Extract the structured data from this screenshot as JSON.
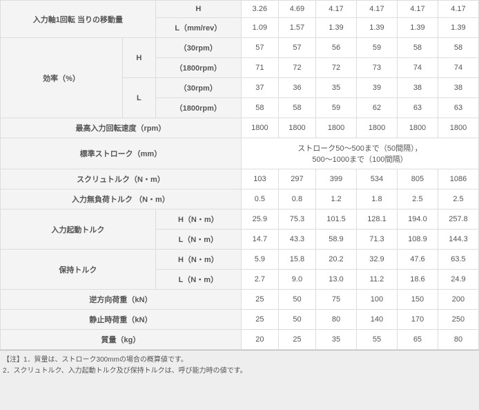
{
  "colors": {
    "bg": "#eeeeee",
    "cell_bg_label": "#f4f4f4",
    "cell_bg_value": "#ffffff",
    "border": "#dddddd",
    "text": "#555555"
  },
  "labels": {
    "travel_per_rev": "入力軸1回転\n当りの移動量",
    "H": "H",
    "L_mmrev": "L（mm/rev）",
    "efficiency": "効率（%）",
    "L": "L",
    "rpm30": "（30rpm）",
    "rpm1800": "（1800rpm）",
    "max_input_speed": "最高入力回転速度（rpm）",
    "std_stroke": "標準ストローク（mm）",
    "std_stroke_note1": "ストローク50～500まで（50間隔），",
    "std_stroke_note2": "500～1000まで（100間隔）",
    "screw_torque": "スクリュトルク（N・m）",
    "no_load_torque": "入力無負荷トルク （N・m）",
    "start_torque": "入力起動トルク",
    "H_Nm": "H（N・m）",
    "L_Nm": "L（N・m）",
    "holding_torque": "保持トルク",
    "reverse_load": "逆方向荷重（kN）",
    "static_load": "静止時荷重（kN）",
    "mass": "質量（kg）"
  },
  "rows": {
    "travel_H": [
      "3.26",
      "4.69",
      "4.17",
      "4.17",
      "4.17",
      "4.17"
    ],
    "travel_L": [
      "1.09",
      "1.57",
      "1.39",
      "1.39",
      "1.39",
      "1.39"
    ],
    "eff_H_30": [
      "57",
      "57",
      "56",
      "59",
      "58",
      "58"
    ],
    "eff_H_1800": [
      "71",
      "72",
      "72",
      "73",
      "74",
      "74"
    ],
    "eff_L_30": [
      "37",
      "36",
      "35",
      "39",
      "38",
      "38"
    ],
    "eff_L_1800": [
      "58",
      "58",
      "59",
      "62",
      "63",
      "63"
    ],
    "max_speed": [
      "1800",
      "1800",
      "1800",
      "1800",
      "1800",
      "1800"
    ],
    "screw_tq": [
      "103",
      "297",
      "399",
      "534",
      "805",
      "1086"
    ],
    "no_load_tq": [
      "0.5",
      "0.8",
      "1.2",
      "1.8",
      "2.5",
      "2.5"
    ],
    "start_H": [
      "25.9",
      "75.3",
      "101.5",
      "128.1",
      "194.0",
      "257.8"
    ],
    "start_L": [
      "14.7",
      "43.3",
      "58.9",
      "71.3",
      "108.9",
      "144.3"
    ],
    "hold_H": [
      "5.9",
      "15.8",
      "20.2",
      "32.9",
      "47.6",
      "63.5"
    ],
    "hold_L": [
      "2.7",
      "9.0",
      "13.0",
      "11.2",
      "18.6",
      "24.9"
    ],
    "rev_load": [
      "25",
      "50",
      "75",
      "100",
      "150",
      "200"
    ],
    "static_ld": [
      "25",
      "50",
      "80",
      "140",
      "170",
      "250"
    ],
    "mass": [
      "20",
      "25",
      "35",
      "55",
      "65",
      "80"
    ]
  },
  "notes": {
    "n1": "【注】1．質量は、ストローク300mmの場合の概算値です。",
    "n2": "2．スクリュトルク、入力起動トルク及び保持トルクは、呼び能力時の値です。"
  }
}
